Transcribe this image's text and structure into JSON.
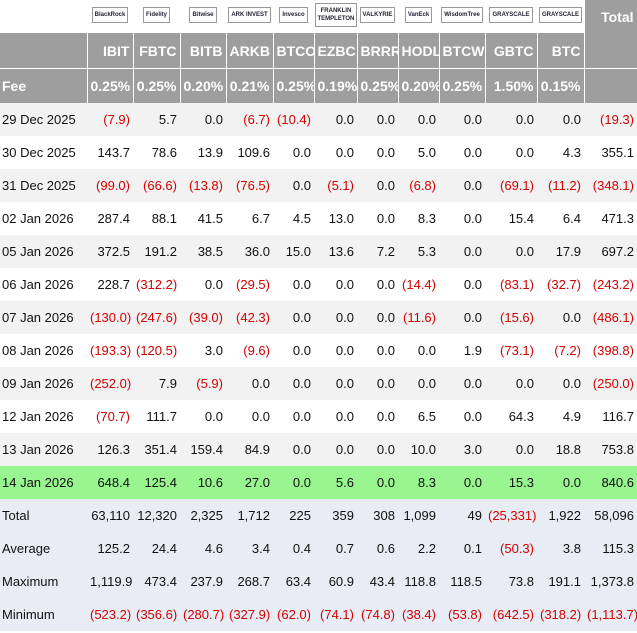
{
  "table": {
    "logos": [
      "BlackRock",
      "Fidelity",
      "Bitwise",
      "ARK INVEST",
      "Invesco",
      "FRANKLIN TEMPLETON",
      "VALKYRIE",
      "VanEck",
      "WisdomTree",
      "GRAYSCALE",
      "GRAYSCALE",
      "Total"
    ],
    "tickers": [
      "IBIT",
      "FBTC",
      "BITB",
      "ARKB",
      "BTCO",
      "EZBC",
      "BRRR",
      "HODL",
      "BTCW",
      "GBTC",
      "BTC"
    ],
    "fee_label": "Fee",
    "fees": [
      "0.25%",
      "0.25%",
      "0.20%",
      "0.21%",
      "0.25%",
      "0.19%",
      "0.25%",
      "0.20%",
      "0.25%",
      "1.50%",
      "0.15%"
    ],
    "rows": [
      [
        "29 Dec 2025",
        "(7.9)",
        "5.7",
        "0.0",
        "(6.7)",
        "(10.4)",
        "0.0",
        "0.0",
        "0.0",
        "0.0",
        "0.0",
        "0.0",
        "(19.3)"
      ],
      [
        "30 Dec 2025",
        "143.7",
        "78.6",
        "13.9",
        "109.6",
        "0.0",
        "0.0",
        "0.0",
        "5.0",
        "0.0",
        "0.0",
        "4.3",
        "355.1"
      ],
      [
        "31 Dec 2025",
        "(99.0)",
        "(66.6)",
        "(13.8)",
        "(76.5)",
        "0.0",
        "(5.1)",
        "0.0",
        "(6.8)",
        "0.0",
        "(69.1)",
        "(11.2)",
        "(348.1)"
      ],
      [
        "02 Jan 2026",
        "287.4",
        "88.1",
        "41.5",
        "6.7",
        "4.5",
        "13.0",
        "0.0",
        "8.3",
        "0.0",
        "15.4",
        "6.4",
        "471.3"
      ],
      [
        "05 Jan 2026",
        "372.5",
        "191.2",
        "38.5",
        "36.0",
        "15.0",
        "13.6",
        "7.2",
        "5.3",
        "0.0",
        "0.0",
        "17.9",
        "697.2"
      ],
      [
        "06 Jan 2026",
        "228.7",
        "(312.2)",
        "0.0",
        "(29.5)",
        "0.0",
        "0.0",
        "0.0",
        "(14.4)",
        "0.0",
        "(83.1)",
        "(32.7)",
        "(243.2)"
      ],
      [
        "07 Jan 2026",
        "(130.0)",
        "(247.6)",
        "(39.0)",
        "(42.3)",
        "0.0",
        "0.0",
        "0.0",
        "(11.6)",
        "0.0",
        "(15.6)",
        "0.0",
        "(486.1)"
      ],
      [
        "08 Jan 2026",
        "(193.3)",
        "(120.5)",
        "3.0",
        "(9.6)",
        "0.0",
        "0.0",
        "0.0",
        "0.0",
        "1.9",
        "(73.1)",
        "(7.2)",
        "(398.8)"
      ],
      [
        "09 Jan 2026",
        "(252.0)",
        "7.9",
        "(5.9)",
        "0.0",
        "0.0",
        "0.0",
        "0.0",
        "0.0",
        "0.0",
        "0.0",
        "0.0",
        "(250.0)"
      ],
      [
        "12 Jan 2026",
        "(70.7)",
        "111.7",
        "0.0",
        "0.0",
        "0.0",
        "0.0",
        "0.0",
        "6.5",
        "0.0",
        "64.3",
        "4.9",
        "116.7"
      ],
      [
        "13 Jan 2026",
        "126.3",
        "351.4",
        "159.4",
        "84.9",
        "0.0",
        "0.0",
        "0.0",
        "10.0",
        "3.0",
        "0.0",
        "18.8",
        "753.8"
      ],
      [
        "14 Jan 2026",
        "648.4",
        "125.4",
        "10.6",
        "27.0",
        "0.0",
        "5.6",
        "0.0",
        "8.3",
        "0.0",
        "15.3",
        "0.0",
        "840.6"
      ]
    ],
    "summary": [
      [
        "Total",
        "63,110",
        "12,320",
        "2,325",
        "1,712",
        "225",
        "359",
        "308",
        "1,099",
        "49",
        "(25,331)",
        "1,922",
        "58,096"
      ],
      [
        "Average",
        "125.2",
        "24.4",
        "4.6",
        "3.4",
        "0.4",
        "0.7",
        "0.6",
        "2.2",
        "0.1",
        "(50.3)",
        "3.8",
        "115.3"
      ],
      [
        "Maximum",
        "1,119.9",
        "473.4",
        "237.9",
        "268.7",
        "63.4",
        "60.9",
        "43.4",
        "118.8",
        "118.5",
        "73.8",
        "191.1",
        "1,373.8"
      ],
      [
        "Minimum",
        "(523.2)",
        "(356.6)",
        "(280.7)",
        "(327.9)",
        "(62.0)",
        "(74.1)",
        "(74.8)",
        "(38.4)",
        "(53.8)",
        "(642.5)",
        "(318.2)",
        "(1,113.7)"
      ]
    ]
  }
}
